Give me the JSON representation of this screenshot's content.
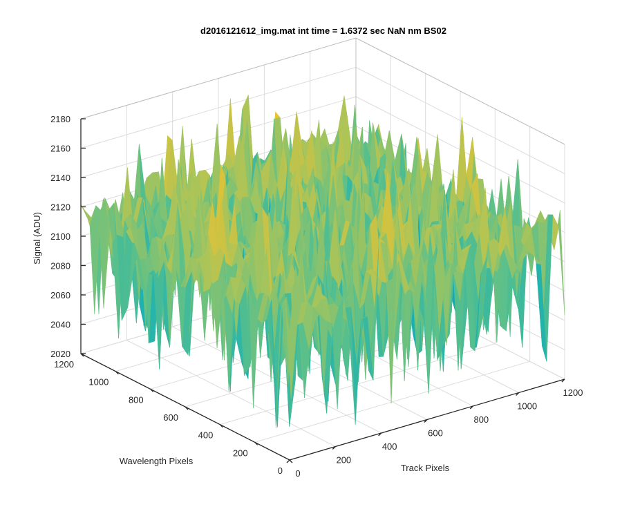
{
  "chart_data": {
    "type": "surface",
    "title": "d2016121612_img.mat int time = 1.6372 sec  NaN nm BS02",
    "xlabel": "Track Pixels",
    "ylabel": "Wavelength Pixels",
    "zlabel": "Signal (ADU)",
    "xlim": [
      0,
      1200
    ],
    "ylim": [
      0,
      1200
    ],
    "zlim": [
      2020,
      2180
    ],
    "xticks": [
      "0",
      "200",
      "400",
      "600",
      "800",
      "1000",
      "1200"
    ],
    "yticks": [
      "0",
      "200",
      "400",
      "600",
      "800",
      "1000",
      "1200"
    ],
    "zticks": [
      "2020",
      "2040",
      "2060",
      "2080",
      "2100",
      "2120",
      "2140",
      "2160",
      "2180"
    ],
    "surface": {
      "x_range": [
        0,
        1200
      ],
      "y_range": [
        0,
        1200
      ],
      "typical_signal": 2110,
      "low_extreme": 2030,
      "high_extreme": 2175
    },
    "colormap": [
      "#0072bd",
      "#0096c7",
      "#1fb2b0",
      "#5cc08a",
      "#a9c45a",
      "#eac231",
      "#f9d21f"
    ],
    "grid": true
  }
}
